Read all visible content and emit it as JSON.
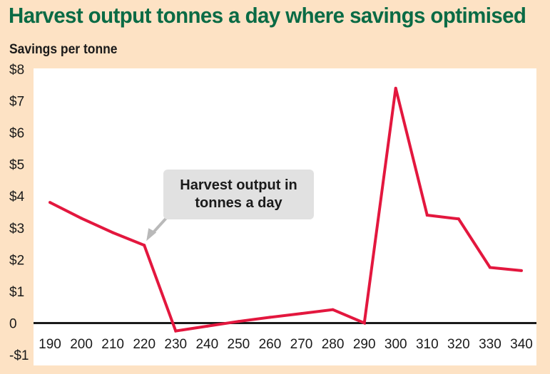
{
  "title": "Harvest output tonnes a day where savings optimised",
  "subtitle": "Savings per tonne",
  "annotation": "Harvest output in tonnes a day",
  "colors": {
    "background": "#fde2c4",
    "plot_background": "#ffffff",
    "title": "#0a6b45",
    "line": "#e3173e",
    "callout": "#e1e1e1",
    "axis": "#1a1a1a"
  },
  "chart_data": {
    "type": "line",
    "title": "Harvest output tonnes a day where savings optimised",
    "xlabel": "",
    "ylabel": "Savings per tonne",
    "x": [
      190,
      200,
      210,
      220,
      230,
      240,
      250,
      260,
      270,
      280,
      290,
      300,
      310,
      320,
      330,
      340
    ],
    "series": [
      {
        "values": [
          3.8,
          3.3,
          2.85,
          2.45,
          -0.25,
          -0.1,
          0.05,
          0.18,
          0.3,
          0.42,
          0.0,
          7.4,
          3.4,
          3.28,
          1.75,
          1.65
        ]
      }
    ],
    "x_tick_labels": [
      "190",
      "200",
      "210",
      "220",
      "230",
      "240",
      "250",
      "260",
      "270",
      "280",
      "290",
      "300",
      "310",
      "320",
      "330",
      "340"
    ],
    "y_ticks": [
      -1,
      0,
      1,
      2,
      3,
      4,
      5,
      6,
      7,
      8
    ],
    "y_tick_labels": [
      "-$1",
      "0",
      "$1",
      "$2",
      "$3",
      "$4",
      "$5",
      "$6",
      "$7",
      "$8"
    ],
    "ylim": [
      -1,
      8
    ],
    "xlim": [
      190,
      340
    ],
    "grid": false,
    "legend": "none",
    "annotation": {
      "text": "Harvest output in tonnes a day",
      "points_to_x": 220
    }
  }
}
